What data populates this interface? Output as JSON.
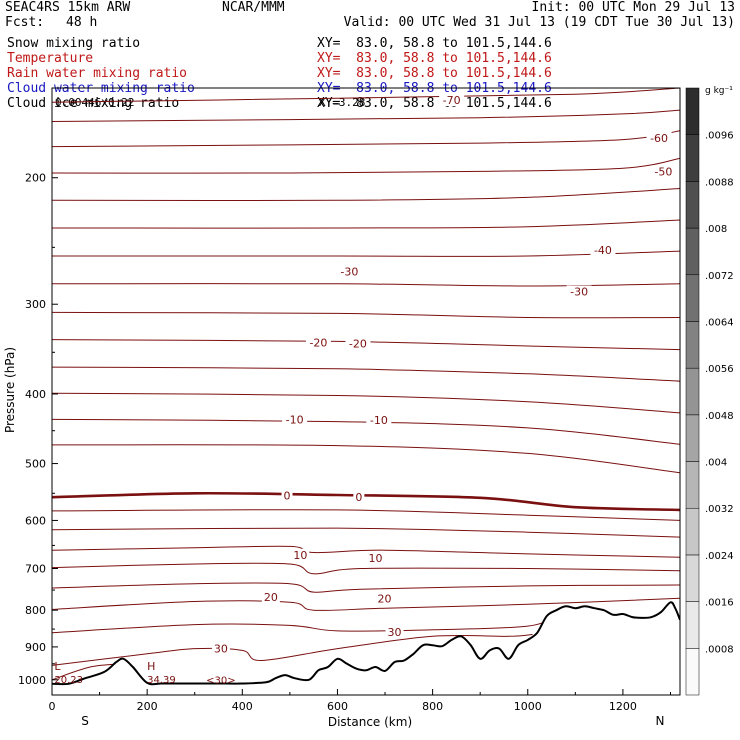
{
  "header": {
    "model": "SEAC4RS 15km ARW",
    "org": "NCAR/MMM",
    "init": "Init: 00 UTC Mon 29 Jul 13",
    "fcst_label": "Fcst:",
    "fcst_value": "48 h",
    "valid": "Valid: 00 UTC Wed 31 Jul 13 (19 CDT Tue 30 Jul 13)"
  },
  "fields": [
    {
      "name": "Snow mixing ratio",
      "xy": "XY=  83.0, 58.8 to 101.5,144.6",
      "color": "#000000"
    },
    {
      "name": "Temperature",
      "xy": "XY=  83.0, 58.8 to 101.5,144.6",
      "color": "#c01818"
    },
    {
      "name": "Rain water mixing ratio",
      "xy": "XY=  83.0, 58.8 to 101.5,144.6",
      "color": "#c01818"
    },
    {
      "name": "Cloud water mixing ratio",
      "xy": "XY=  83.0, 58.8 to 101.5,144.6",
      "color": "#1818c0"
    },
    {
      "name": "Cloud ice mixing ratio",
      "xy": "XY=  83.0, 58.8 to 101.5,144.6",
      "color": "#000000"
    }
  ],
  "overlap_text": {
    "left": "0.00446/0.22",
    "right": "XY=3.28"
  },
  "chart_data": {
    "type": "line",
    "subtype": "vertical cross-section",
    "xlabel": "Distance (km)",
    "ylabel": "Pressure (hPa)",
    "xlim": [
      0,
      1320
    ],
    "ylim": [
      1050,
      150
    ],
    "y_scale": "log",
    "x_ticks": [
      0,
      200,
      400,
      600,
      800,
      1000,
      1200
    ],
    "y_ticks": [
      200,
      300,
      400,
      500,
      600,
      700,
      800,
      900,
      1000
    ],
    "x_end_labels": {
      "left": "S",
      "right": "N"
    },
    "colorbar": {
      "unit": "g kg⁻¹",
      "ticks": [
        ".0008",
        ".0016",
        ".0024",
        ".0032",
        ".004",
        ".0048",
        ".0056",
        ".0064",
        ".0072",
        ".008",
        ".0088",
        ".0096"
      ]
    },
    "isotherm_labels": [
      {
        "text": "-70",
        "x": 840,
        "p": 156
      },
      {
        "text": "-60",
        "x": 1276,
        "p": 176
      },
      {
        "text": "-50",
        "x": 1285,
        "p": 196
      },
      {
        "text": "-40",
        "x": 1158,
        "p": 252
      },
      {
        "text": "-30",
        "x": 1108,
        "p": 288
      },
      {
        "text": "-30",
        "x": 625,
        "p": 270
      },
      {
        "text": "-20",
        "x": 560,
        "p": 339
      },
      {
        "text": "-20",
        "x": 643,
        "p": 340
      },
      {
        "text": "-10",
        "x": 510,
        "p": 434
      },
      {
        "text": "-10",
        "x": 687,
        "p": 435
      },
      {
        "text": "0",
        "x": 494,
        "p": 554
      },
      {
        "text": "0",
        "x": 645,
        "p": 557
      },
      {
        "text": "10",
        "x": 522,
        "p": 670
      },
      {
        "text": "10",
        "x": 680,
        "p": 677
      },
      {
        "text": "20",
        "x": 460,
        "p": 767
      },
      {
        "text": "20",
        "x": 699,
        "p": 771
      },
      {
        "text": "30",
        "x": 720,
        "p": 858
      },
      {
        "text": "30",
        "x": 355,
        "p": 905
      }
    ],
    "extrema": [
      {
        "type": "L",
        "value": "20.23",
        "x": 5,
        "p": 1000
      },
      {
        "type": "H",
        "value": "34.39",
        "x": 200,
        "p": 1000
      }
    ],
    "surface_label": {
      "text": "<30>",
      "x": 355,
      "p": 1003
    },
    "terrain": {
      "x": [
        0,
        35,
        70,
        110,
        135,
        150,
        170,
        200,
        230,
        260,
        300,
        350,
        400,
        450,
        470,
        490,
        510,
        540,
        560,
        580,
        600,
        620,
        640,
        660,
        680,
        700,
        720,
        740,
        760,
        780,
        800,
        820,
        840,
        860,
        880,
        900,
        920,
        940,
        960,
        980,
        1000,
        1020,
        1040,
        1060,
        1080,
        1100,
        1120,
        1140,
        1160,
        1180,
        1200,
        1220,
        1240,
        1260,
        1280,
        1300,
        1310,
        1320
      ],
      "p": [
        1013,
        1013,
        995,
        975,
        945,
        935,
        960,
        1010,
        1012,
        1012,
        1012,
        1012,
        1012,
        1008,
        995,
        985,
        995,
        1000,
        970,
        960,
        935,
        950,
        965,
        970,
        960,
        972,
        945,
        940,
        920,
        895,
        895,
        898,
        880,
        870,
        895,
        935,
        910,
        905,
        935,
        895,
        880,
        860,
        815,
        800,
        790,
        795,
        790,
        795,
        800,
        812,
        810,
        818,
        820,
        818,
        805,
        780,
        795,
        825
      ]
    },
    "isotherms": [
      {
        "T": -70,
        "x": [
          0,
          600,
          1100,
          1320
        ],
        "p": [
          157,
          155,
          153,
          150
        ]
      },
      {
        "T": -65,
        "x": [
          0,
          500,
          900,
          1200,
          1320
        ],
        "p": [
          167,
          166,
          165,
          163,
          161
        ]
      },
      {
        "T": -60,
        "x": [
          0,
          500,
          900,
          1200,
          1320
        ],
        "p": [
          181,
          180,
          179,
          177,
          172
        ]
      },
      {
        "T": -55,
        "x": [
          0,
          500,
          900,
          1200,
          1320
        ],
        "p": [
          197,
          197,
          196,
          194,
          188
        ]
      },
      {
        "T": -50,
        "x": [
          0,
          600,
          1000,
          1320
        ],
        "p": [
          215,
          215,
          213,
          207
        ]
      },
      {
        "T": -45,
        "x": [
          0,
          600,
          1000,
          1320
        ],
        "p": [
          235,
          235,
          234,
          229
        ]
      },
      {
        "T": -40,
        "x": [
          0,
          600,
          1000,
          1320
        ],
        "p": [
          257,
          257,
          257,
          253
        ]
      },
      {
        "T": -35,
        "x": [
          0,
          600,
          1000,
          1320
        ],
        "p": [
          281,
          281,
          283,
          281
        ]
      },
      {
        "T": -30,
        "x": [
          0,
          600,
          1000,
          1320
        ],
        "p": [
          308,
          309,
          313,
          313
        ]
      },
      {
        "T": -25,
        "x": [
          0,
          600,
          1000,
          1320
        ],
        "p": [
          336,
          338,
          343,
          347
        ]
      },
      {
        "T": -20,
        "x": [
          0,
          600,
          1000,
          1320
        ],
        "p": [
          367,
          369,
          375,
          384
        ]
      },
      {
        "T": -15,
        "x": [
          0,
          600,
          1000,
          1320
        ],
        "p": [
          399,
          402,
          410,
          425
        ]
      },
      {
        "T": -10,
        "x": [
          0,
          600,
          1000,
          1320
        ],
        "p": [
          434,
          437,
          446,
          470
        ]
      },
      {
        "T": -5,
        "x": [
          0,
          600,
          1000,
          1320
        ],
        "p": [
          471,
          472,
          484,
          515
        ]
      },
      {
        "T": 0,
        "x": [
          0,
          300,
          600,
          900,
          1100,
          1320
        ],
        "p": [
          557,
          550,
          553,
          558,
          575,
          580
        ]
      },
      {
        "T": 5,
        "x": [
          0,
          600,
          1000,
          1320
        ],
        "p": [
          582,
          580,
          590,
          600
        ]
      },
      {
        "T": 10,
        "x": [
          0,
          600,
          1000,
          1320
        ],
        "p": [
          618,
          615,
          623,
          633
        ]
      },
      {
        "T": 15,
        "x": [
          0,
          300,
          500,
          550,
          700,
          1000,
          1320
        ],
        "p": [
          660,
          655,
          652,
          665,
          660,
          668,
          675
        ]
      },
      {
        "T": 20,
        "x": [
          0,
          300,
          500,
          550,
          650,
          1000,
          1320
        ],
        "p": [
          698,
          690,
          690,
          712,
          700,
          700,
          705
        ]
      },
      {
        "T": 25,
        "x": [
          0,
          300,
          500,
          550,
          650,
          1000,
          1320
        ],
        "p": [
          745,
          735,
          735,
          755,
          748,
          740,
          738
        ]
      },
      {
        "T": 30,
        "x": [
          0,
          300,
          500,
          550,
          700,
          1000,
          1320
        ],
        "p": [
          798,
          778,
          780,
          800,
          795,
          785,
          770
        ]
      },
      {
        "T": 35,
        "x": [
          0,
          300,
          500,
          600,
          800,
          1000,
          1060
        ],
        "p": [
          860,
          838,
          840,
          855,
          852,
          842,
          812
        ]
      },
      {
        "T": 40,
        "x": [
          0,
          200,
          300,
          400,
          440,
          600,
          800,
          960,
          1010
        ],
        "p": [
          955,
          920,
          905,
          910,
          940,
          905,
          870,
          870,
          865
        ]
      },
      {
        "T": 45,
        "x": [
          0,
          80,
          150
        ],
        "p": [
          1000,
          960,
          950
        ]
      }
    ]
  }
}
